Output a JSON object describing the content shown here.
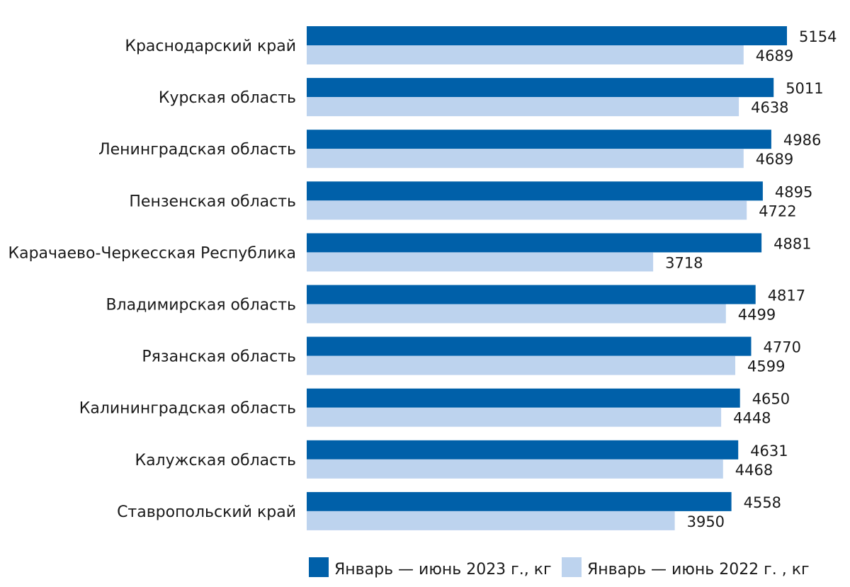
{
  "chart_data": {
    "type": "bar",
    "orientation": "horizontal",
    "categories": [
      "Краснодарский край",
      "Курская область",
      "Ленинградская область",
      "Пензенская область",
      "Карачаево-Черкесская Республика",
      "Владимирская область",
      "Рязанская область",
      "Калининградская область",
      "Калужская область",
      "Ставропольский край"
    ],
    "series": [
      {
        "name": "Январь — июнь 2023 г., кг",
        "color": "#0060a9",
        "values": [
          5154,
          5011,
          4986,
          4895,
          4881,
          4817,
          4770,
          4650,
          4631,
          4558
        ]
      },
      {
        "name": "Январь — июнь 2022 г. , кг",
        "color": "#bdd3ee",
        "values": [
          4689,
          4638,
          4689,
          4722,
          3718,
          4499,
          4599,
          4448,
          4468,
          3950
        ]
      }
    ],
    "title": "",
    "xlabel": "",
    "ylabel": "",
    "xlim": [
      0,
      5154
    ],
    "grid": false,
    "legend_position": "bottom"
  }
}
